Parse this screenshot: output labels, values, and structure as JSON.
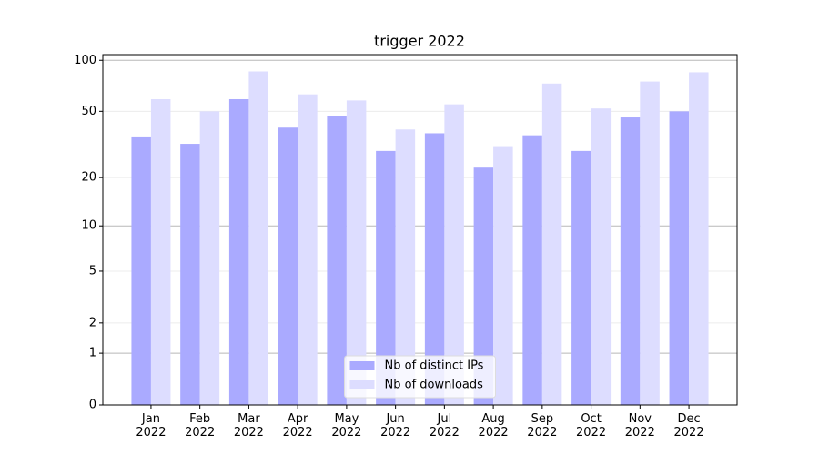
{
  "chart_data": {
    "type": "bar",
    "title": "trigger 2022",
    "categories": [
      "Jan\n2022",
      "Feb\n2022",
      "Mar\n2022",
      "Apr\n2022",
      "May\n2022",
      "Jun\n2022",
      "Jul\n2022",
      "Aug\n2022",
      "Sep\n2022",
      "Oct\n2022",
      "Nov\n2022",
      "Dec\n2022"
    ],
    "series": [
      {
        "name": "Nb of distinct IPs",
        "color": "#aaaaff",
        "values": [
          35,
          32,
          59,
          40,
          47,
          29,
          37,
          23,
          36,
          29,
          46,
          50
        ]
      },
      {
        "name": "Nb of downloads",
        "color": "#ddddff",
        "values": [
          59,
          50,
          86,
          63,
          58,
          39,
          55,
          31,
          73,
          52,
          75,
          85
        ]
      }
    ],
    "yscale": "log1p",
    "ylim": [
      0,
      108
    ],
    "yticks": [
      0,
      1,
      2,
      5,
      10,
      20,
      50,
      100
    ],
    "grid": true,
    "legend": "lower center"
  }
}
